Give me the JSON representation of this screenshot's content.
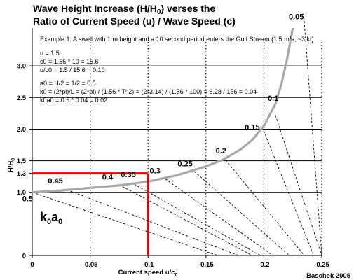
{
  "title_line1": "Wave Height Increase (H/H",
  "title_sub": "0",
  "title_line1_end": ") verses the",
  "title_line2": "Ratio of Current Speed (u) / Wave Speed (c)",
  "example_lines": [
    "Example 1: A swell with 1 m height and a 10 second period enters the Gulf Stream (1.5 m/s, ~3 kt)",
    "u = 1.5",
    "c0 = 1.56 * 10 = 15.6",
    "u/c0 = 1.5 / 15.6 = 0.10",
    "a0 = H/2 = 1/2 = 0.5",
    "k0 = (2*pi)/L = (2*pi) / (1.56 * T^2) = (2*3.14) / (1.56 * 100) = 6.28 / 156 = 0.04",
    "k0a0 = 0.5 * 0.04 = 0.02"
  ],
  "credit": "Baschek 2005",
  "colors": {
    "main_curve": "#a8a8a8",
    "highlight": "#ee0000",
    "lines": "#000000"
  },
  "chart_data": {
    "type": "line",
    "xlabel": "Current speed u/c",
    "xlabel_sub": "0",
    "ylabel": "H/H",
    "ylabel_sub": "0",
    "xlim": [
      0,
      -0.25
    ],
    "ylim": [
      0,
      3.6
    ],
    "x_ticks": [
      {
        "value": 0,
        "label": "0"
      },
      {
        "value": -0.05,
        "label": "-0.05"
      },
      {
        "value": -0.1,
        "label": "-0.1"
      },
      {
        "value": -0.15,
        "label": "-0.15"
      },
      {
        "value": -0.2,
        "label": "-0.2"
      },
      {
        "value": -0.25,
        "label": "-0.25"
      }
    ],
    "y_ticks": [
      {
        "value": 0,
        "label": "0"
      },
      {
        "value": 1.0,
        "label": "1.0"
      },
      {
        "value": 1.3,
        "label": "1.3"
      },
      {
        "value": 1.5,
        "label": "1.5"
      },
      {
        "value": 2.0,
        "label": "2.0"
      },
      {
        "value": 2.5,
        "label": "2.5"
      },
      {
        "value": 3.0,
        "label": "3.0"
      }
    ],
    "horizontal_gridlines": [
      1.0,
      1.5,
      2.0,
      2.5,
      3.0
    ],
    "vertical_gridlines": [
      -0.05,
      -0.1,
      -0.15,
      -0.2,
      -0.25
    ],
    "kernel_label": "k",
    "kernel_sub1": "0",
    "kernel_label2": "a",
    "kernel_sub2": "0",
    "main_series": {
      "name": "",
      "points": [
        [
          0,
          1.0
        ],
        [
          -0.025,
          1.03
        ],
        [
          -0.05,
          1.07
        ],
        [
          -0.075,
          1.11
        ],
        [
          -0.1,
          1.17
        ],
        [
          -0.125,
          1.27
        ],
        [
          -0.15,
          1.41
        ],
        [
          -0.165,
          1.52
        ],
        [
          -0.18,
          1.68
        ],
        [
          -0.19,
          1.83
        ],
        [
          -0.2,
          2.05
        ],
        [
          -0.21,
          2.4
        ],
        [
          -0.215,
          2.7
        ],
        [
          -0.22,
          3.1
        ],
        [
          -0.225,
          3.6
        ],
        [
          -0.23,
          4.4
        ]
      ]
    },
    "dashed_series": [
      {
        "name": "0.05",
        "points": [
          [
            -0.2344,
            3.83
          ],
          [
            -0.25,
            0.0
          ]
        ]
      },
      {
        "name": "0.1",
        "points": [
          [
            -0.21,
            2.22
          ],
          [
            -0.25,
            0.0
          ]
        ]
      },
      {
        "name": "0.15",
        "points": [
          [
            -0.2,
            1.97
          ],
          [
            -0.243,
            0.0
          ]
        ]
      },
      {
        "name": "0.2",
        "points": [
          [
            -0.167,
            1.51
          ],
          [
            -0.235,
            0.0
          ]
        ]
      },
      {
        "name": "0.25",
        "points": [
          [
            -0.14,
            1.33
          ],
          [
            -0.222,
            0.0
          ]
        ]
      },
      {
        "name": "0.3",
        "points": [
          [
            -0.115,
            1.21
          ],
          [
            -0.208,
            0.0
          ]
        ]
      },
      {
        "name": "0.35",
        "points": [
          [
            -0.088,
            1.13
          ],
          [
            -0.197,
            0.0
          ]
        ]
      },
      {
        "name": "0.4",
        "points": [
          [
            -0.075,
            1.12
          ],
          [
            -0.19,
            0.0
          ]
        ]
      },
      {
        "name": "0.45",
        "points": [
          [
            -0.03,
            1.04
          ],
          [
            -0.178,
            0.0
          ]
        ]
      },
      {
        "name": "0.5",
        "points": [
          [
            0,
            1.0
          ],
          [
            -0.16,
            0.0
          ]
        ]
      }
    ],
    "curve_labels": [
      {
        "text": "0.05",
        "x": -0.228,
        "y": 3.74
      },
      {
        "text": "0.1",
        "x": -0.208,
        "y": 2.45
      },
      {
        "text": "0.15",
        "x": -0.19,
        "y": 1.99
      },
      {
        "text": "0.2",
        "x": -0.163,
        "y": 1.62
      },
      {
        "text": "0.25",
        "x": -0.132,
        "y": 1.41
      },
      {
        "text": "0.3",
        "x": -0.106,
        "y": 1.3
      },
      {
        "text": "0.35",
        "x": -0.083,
        "y": 1.24
      },
      {
        "text": "0.4",
        "x": -0.065,
        "y": 1.2
      },
      {
        "text": "0.45",
        "x": -0.02,
        "y": 1.14
      },
      {
        "text": "0.5",
        "x": 0.004,
        "y": 0.86
      }
    ],
    "highlight": {
      "x": -0.1,
      "y": 1.3
    }
  }
}
